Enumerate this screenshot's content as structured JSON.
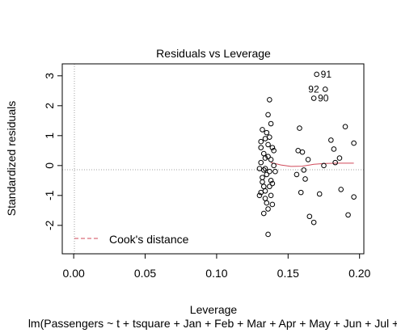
{
  "chart_data": {
    "type": "scatter",
    "title": "Residuals vs Leverage",
    "xlabel": "Leverage",
    "ylabel": "Standardized residuals",
    "subtitle": "lm(Passengers ~ t + tsquare + Jan + Feb + Mar + Apr + May + Jun + Jul +",
    "xlim": [
      -0.008,
      0.203
    ],
    "ylim": [
      -2.95,
      3.4
    ],
    "x_ticks": [
      0.0,
      0.05,
      0.1,
      0.15,
      0.2
    ],
    "x_tick_labels": [
      "0.00",
      "0.05",
      "0.10",
      "0.15",
      "0.20"
    ],
    "y_ticks": [
      -2,
      -1,
      0,
      1,
      2,
      3
    ],
    "y_tick_labels": [
      "-2",
      "-1",
      "0",
      "1",
      "2",
      "3"
    ],
    "grid": false,
    "reference_lines": {
      "x": 0,
      "y": 0,
      "style": "dotted",
      "color": "#9a9a9a"
    },
    "legend": {
      "position": "bottom-left",
      "entries": [
        {
          "label": "Cook's distance",
          "style": "dashed",
          "color": "#d04a5a"
        }
      ]
    },
    "points": [
      [
        0.131,
        0.8
      ],
      [
        0.134,
        0.9
      ],
      [
        0.136,
        0.7
      ],
      [
        0.133,
        0.4
      ],
      [
        0.138,
        0.2
      ],
      [
        0.13,
        -0.1
      ],
      [
        0.135,
        -0.3
      ],
      [
        0.132,
        -0.55
      ],
      [
        0.137,
        -0.7
      ],
      [
        0.131,
        -0.9
      ],
      [
        0.134,
        -1.1
      ],
      [
        0.139,
        -1.3
      ],
      [
        0.133,
        -1.6
      ],
      [
        0.136,
        -2.3
      ],
      [
        0.138,
        1.4
      ],
      [
        0.135,
        1.1
      ],
      [
        0.131,
        0.1
      ],
      [
        0.137,
        -0.2
      ],
      [
        0.132,
        -0.4
      ],
      [
        0.134,
        -0.85
      ],
      [
        0.138,
        -1.0
      ],
      [
        0.139,
        0.6
      ],
      [
        0.136,
        1.7
      ],
      [
        0.137,
        2.2
      ],
      [
        0.133,
        -0.15
      ],
      [
        0.14,
        0.0
      ],
      [
        0.141,
        -0.2
      ],
      [
        0.139,
        -0.6
      ],
      [
        0.136,
        0.3
      ],
      [
        0.132,
        1.2
      ],
      [
        0.13,
        -1.0
      ],
      [
        0.134,
        0.25
      ],
      [
        0.135,
        -1.25
      ],
      [
        0.137,
        0.95
      ],
      [
        0.133,
        -0.7
      ],
      [
        0.138,
        -0.5
      ],
      [
        0.14,
        0.5
      ],
      [
        0.131,
        0.6
      ],
      [
        0.136,
        -1.45
      ],
      [
        0.134,
        -0.1
      ],
      [
        0.157,
        0.5
      ],
      [
        0.16,
        0.45
      ],
      [
        0.158,
        1.25
      ],
      [
        0.161,
        -0.15
      ],
      [
        0.164,
        0.2
      ],
      [
        0.162,
        -0.45
      ],
      [
        0.156,
        -0.3
      ],
      [
        0.159,
        -0.9
      ],
      [
        0.165,
        -1.7
      ],
      [
        0.168,
        -1.9
      ],
      [
        0.168,
        2.25
      ],
      [
        0.17,
        3.05
      ],
      [
        0.176,
        2.55
      ],
      [
        0.18,
        0.85
      ],
      [
        0.182,
        0.55
      ],
      [
        0.186,
        0.25
      ],
      [
        0.19,
        1.3
      ],
      [
        0.196,
        0.75
      ],
      [
        0.192,
        -1.65
      ],
      [
        0.196,
        -1.05
      ],
      [
        0.187,
        -0.8
      ],
      [
        0.172,
        -0.95
      ],
      [
        0.175,
        0.0
      ],
      [
        0.183,
        0.1
      ]
    ],
    "point_labels": [
      {
        "text": "91",
        "x": 0.17,
        "y": 3.05
      },
      {
        "text": "92",
        "x": 0.176,
        "y": 2.55
      },
      {
        "text": "90",
        "x": 0.168,
        "y": 2.25
      }
    ],
    "cooks_curve": [
      [
        0.138,
        0.1
      ],
      [
        0.145,
        0.02
      ],
      [
        0.152,
        -0.03
      ],
      [
        0.16,
        -0.02
      ],
      [
        0.168,
        0.04
      ],
      [
        0.176,
        0.07
      ],
      [
        0.185,
        0.08
      ],
      [
        0.196,
        0.08
      ]
    ]
  }
}
